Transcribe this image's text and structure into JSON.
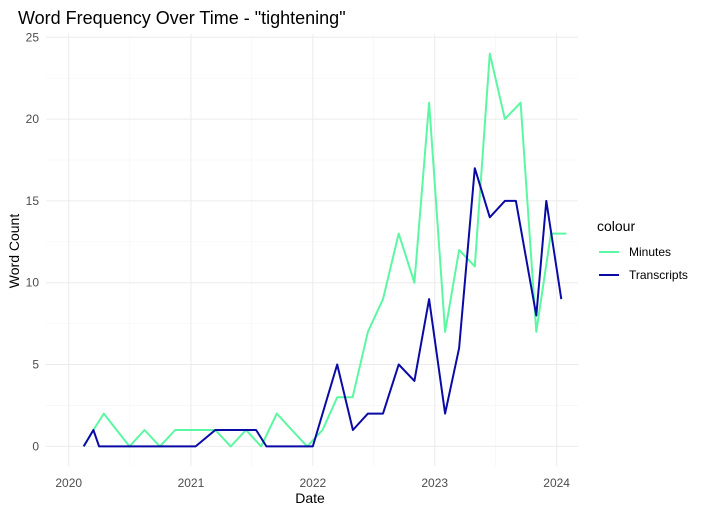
{
  "chart_data": {
    "type": "line",
    "title": "Word Frequency Over Time - \"tightening\"",
    "xlabel": "Date",
    "ylabel": "Word Count",
    "x_ticks": [
      {
        "value": "2020-01-01",
        "label": "2020"
      },
      {
        "value": "2021-01-01",
        "label": "2021"
      },
      {
        "value": "2022-01-01",
        "label": "2022"
      },
      {
        "value": "2023-01-01",
        "label": "2023"
      },
      {
        "value": "2024-01-01",
        "label": "2024"
      }
    ],
    "y_ticks": [
      0,
      5,
      10,
      15,
      20,
      25
    ],
    "xlim": [
      "2019-10-25",
      "2024-03-05"
    ],
    "ylim": [
      -1.2,
      25.2
    ],
    "grid": true,
    "legend": {
      "title": "colour",
      "position": "right"
    },
    "series": [
      {
        "name": "Minutes",
        "color": "#5cf7a2",
        "points": [
          [
            "2020-02-15",
            0
          ],
          [
            "2020-03-15",
            1
          ],
          [
            "2020-04-15",
            2
          ],
          [
            "2020-07-01",
            0
          ],
          [
            "2020-08-15",
            1
          ],
          [
            "2020-09-30",
            0
          ],
          [
            "2020-11-15",
            1
          ],
          [
            "2021-01-30",
            1
          ],
          [
            "2021-03-15",
            1
          ],
          [
            "2021-04-30",
            0
          ],
          [
            "2021-06-15",
            1
          ],
          [
            "2021-07-30",
            0
          ],
          [
            "2021-09-15",
            2
          ],
          [
            "2021-10-30",
            1
          ],
          [
            "2021-12-15",
            0
          ],
          [
            "2022-01-30",
            1
          ],
          [
            "2022-03-15",
            3
          ],
          [
            "2022-04-30",
            3
          ],
          [
            "2022-06-15",
            7
          ],
          [
            "2022-07-30",
            9
          ],
          [
            "2022-09-15",
            13
          ],
          [
            "2022-11-01",
            10
          ],
          [
            "2022-12-15",
            21
          ],
          [
            "2023-02-01",
            7
          ],
          [
            "2023-03-15",
            12
          ],
          [
            "2023-05-01",
            11
          ],
          [
            "2023-06-15",
            24
          ],
          [
            "2023-07-30",
            20
          ],
          [
            "2023-09-15",
            21
          ],
          [
            "2023-11-01",
            7
          ],
          [
            "2023-12-15",
            13
          ],
          [
            "2024-01-30",
            13
          ]
        ]
      },
      {
        "name": "Transcripts",
        "color": "#0a0aa5",
        "points": [
          [
            "2020-02-15",
            0
          ],
          [
            "2020-03-15",
            1
          ],
          [
            "2020-04-01",
            0
          ],
          [
            "2020-07-01",
            0
          ],
          [
            "2020-09-15",
            0
          ],
          [
            "2020-11-15",
            0
          ],
          [
            "2021-01-15",
            0
          ],
          [
            "2021-03-15",
            1
          ],
          [
            "2021-04-30",
            1
          ],
          [
            "2021-06-15",
            1
          ],
          [
            "2021-07-15",
            1
          ],
          [
            "2021-08-15",
            0
          ],
          [
            "2021-10-15",
            0
          ],
          [
            "2021-12-15",
            0
          ],
          [
            "2022-01-01",
            0
          ],
          [
            "2022-03-15",
            5
          ],
          [
            "2022-05-01",
            1
          ],
          [
            "2022-06-15",
            2
          ],
          [
            "2022-07-30",
            2
          ],
          [
            "2022-09-15",
            5
          ],
          [
            "2022-11-01",
            4
          ],
          [
            "2022-12-15",
            9
          ],
          [
            "2023-02-01",
            2
          ],
          [
            "2023-03-15",
            6
          ],
          [
            "2023-05-01",
            17
          ],
          [
            "2023-06-15",
            14
          ],
          [
            "2023-07-30",
            15
          ],
          [
            "2023-09-01",
            15
          ],
          [
            "2023-11-01",
            8
          ],
          [
            "2023-12-01",
            15
          ],
          [
            "2024-01-15",
            9
          ]
        ]
      }
    ]
  }
}
